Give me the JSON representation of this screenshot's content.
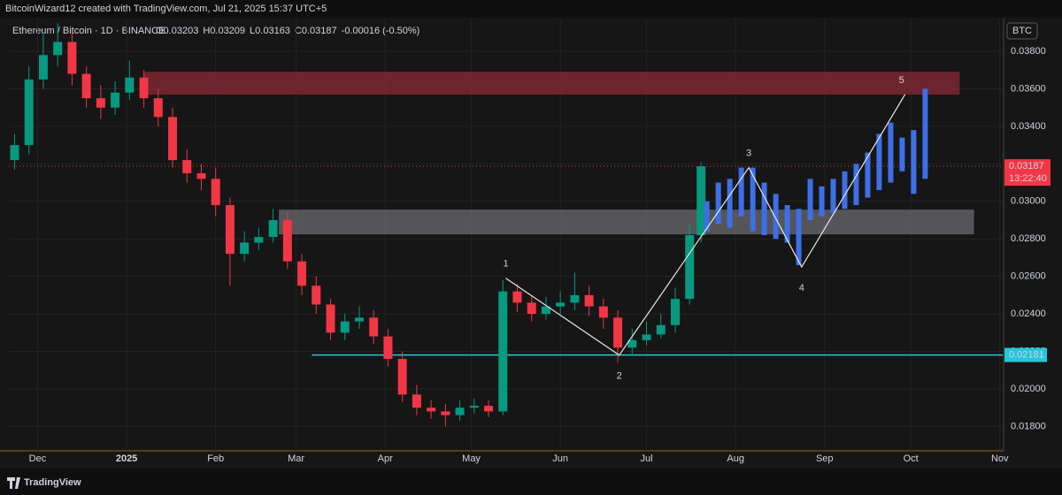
{
  "header": "BitcoinWizard12 created with TradingView.com, Jul 21, 2025 15:37 UTC+5",
  "footer": "TradingView",
  "chart_data": {
    "type": "candlestick",
    "legend_title": "Ethereum / Bitcoin · 1D · BINANCE",
    "ohlc_text": [
      "O0.03203",
      "H0.03209",
      "L0.03163",
      "C0.03187",
      "-0.00016 (-0.50%)"
    ],
    "currency": "BTC",
    "up_color": "#089981",
    "down_color": "#f23645",
    "x": [
      -8,
      -3,
      2,
      7,
      12,
      17,
      22,
      27,
      32,
      37,
      42,
      47,
      52,
      57,
      62,
      67,
      72,
      77,
      82,
      87,
      92,
      97,
      102,
      107,
      112,
      117,
      122,
      127,
      132,
      137,
      142,
      147,
      152,
      157,
      162,
      167,
      172,
      177,
      182,
      187,
      192,
      197,
      202,
      207,
      212,
      217,
      222,
      227,
      231
    ],
    "open": [
      0.0322,
      0.033,
      0.0365,
      0.0378,
      0.0385,
      0.0368,
      0.0355,
      0.035,
      0.0358,
      0.0366,
      0.0355,
      0.0345,
      0.0322,
      0.0315,
      0.0312,
      0.0298,
      0.0272,
      0.0278,
      0.0281,
      0.029,
      0.0268,
      0.0255,
      0.0245,
      0.023,
      0.0236,
      0.0238,
      0.0228,
      0.0216,
      0.0197,
      0.019,
      0.0188,
      0.0186,
      0.019,
      0.0191,
      0.0188,
      0.0252,
      0.0246,
      0.024,
      0.0244,
      0.0246,
      0.025,
      0.0244,
      0.0238,
      0.0222,
      0.0226,
      0.0229,
      0.0234,
      0.0248,
      0.0282
    ],
    "high": [
      0.0336,
      0.0372,
      0.039,
      0.0395,
      0.039,
      0.0372,
      0.0362,
      0.0364,
      0.0375,
      0.037,
      0.036,
      0.035,
      0.0328,
      0.032,
      0.0318,
      0.0302,
      0.0284,
      0.0286,
      0.0296,
      0.0294,
      0.0272,
      0.026,
      0.0248,
      0.024,
      0.0244,
      0.0242,
      0.0232,
      0.022,
      0.0202,
      0.0194,
      0.0192,
      0.0194,
      0.0195,
      0.0194,
      0.0258,
      0.0256,
      0.025,
      0.0249,
      0.0252,
      0.0262,
      0.0255,
      0.0248,
      0.0242,
      0.0232,
      0.0236,
      0.024,
      0.0254,
      0.0288,
      0.03209
    ],
    "low": [
      0.0317,
      0.0325,
      0.036,
      0.0372,
      0.0362,
      0.035,
      0.0344,
      0.0346,
      0.0354,
      0.035,
      0.034,
      0.0318,
      0.031,
      0.0306,
      0.0292,
      0.0255,
      0.0268,
      0.0274,
      0.0278,
      0.0264,
      0.025,
      0.024,
      0.0226,
      0.0226,
      0.0232,
      0.0224,
      0.0212,
      0.0193,
      0.0186,
      0.0184,
      0.018,
      0.0183,
      0.0187,
      0.0185,
      0.0186,
      0.0241,
      0.0236,
      0.0237,
      0.024,
      0.0242,
      0.0239,
      0.0232,
      0.0214,
      0.0218,
      0.0223,
      0.0227,
      0.023,
      0.0245,
      0.0278
    ],
    "close": [
      0.033,
      0.0365,
      0.0378,
      0.0385,
      0.0368,
      0.0355,
      0.035,
      0.0358,
      0.0366,
      0.0355,
      0.0345,
      0.0322,
      0.0315,
      0.0312,
      0.0298,
      0.0272,
      0.0278,
      0.0281,
      0.029,
      0.0268,
      0.0255,
      0.0245,
      0.023,
      0.0236,
      0.0238,
      0.0228,
      0.0216,
      0.0197,
      0.019,
      0.0188,
      0.0186,
      0.019,
      0.0191,
      0.0188,
      0.0252,
      0.0246,
      0.024,
      0.0244,
      0.0246,
      0.025,
      0.0244,
      0.0238,
      0.0222,
      0.0226,
      0.0229,
      0.0234,
      0.0248,
      0.0282,
      0.03187
    ],
    "projection": {
      "color": "#3d6fe6",
      "x": [
        233,
        237,
        241,
        245,
        249,
        253,
        257,
        261,
        265,
        269,
        273,
        277,
        281,
        285,
        289,
        293,
        297,
        301,
        305,
        309
      ],
      "high": [
        0.03,
        0.031,
        0.0312,
        0.0318,
        0.0318,
        0.031,
        0.0304,
        0.0298,
        0.0296,
        0.0312,
        0.0308,
        0.0312,
        0.0316,
        0.032,
        0.0326,
        0.0336,
        0.0342,
        0.0334,
        0.0338,
        0.036
      ],
      "low": [
        0.0284,
        0.0288,
        0.0286,
        0.0292,
        0.0284,
        0.0282,
        0.028,
        0.0278,
        0.0266,
        0.029,
        0.0292,
        0.0294,
        0.0296,
        0.0298,
        0.0302,
        0.0306,
        0.031,
        0.0316,
        0.0304,
        0.0312
      ]
    },
    "zones": [
      {
        "color": "#8a2a36",
        "x": [
          37,
          321
        ],
        "y": [
          0.03569,
          0.03691
        ]
      },
      {
        "color": "#6b6b70",
        "x": [
          84,
          326
        ],
        "y": [
          0.02824,
          0.02956
        ]
      }
    ],
    "waves": {
      "labels": [
        "1",
        "2",
        "3",
        "4",
        "5"
      ],
      "colors": [
        "#f5c542",
        "#f5c542",
        "#f5c542",
        "#f5c542",
        "#f7931a"
      ],
      "x": [
        163,
        202.5,
        247.6,
        266,
        302
      ],
      "y": [
        0.0259,
        0.0218,
        0.0318,
        0.0265,
        0.0357
      ]
    },
    "support": {
      "value": 0.02181,
      "label": "0.02181",
      "x": 95.5,
      "color": "#26c6da"
    },
    "last_price": {
      "value": 0.03187,
      "label": "0.03187",
      "countdown": "13:22:40",
      "color": "#f23645"
    },
    "xlim": [
      -10,
      336
    ],
    "ylim": [
      0.0167,
      0.0397
    ],
    "xticks": [
      {
        "value": 0,
        "label": "Dec"
      },
      {
        "value": 31,
        "label": "2025"
      },
      {
        "value": 62,
        "label": "Feb"
      },
      {
        "value": 90,
        "label": "Mar"
      },
      {
        "value": 121,
        "label": "Apr"
      },
      {
        "value": 151,
        "label": "May"
      },
      {
        "value": 182,
        "label": "Jun"
      },
      {
        "value": 212,
        "label": "Jul"
      },
      {
        "value": 243,
        "label": "Aug"
      },
      {
        "value": 274,
        "label": "Sep"
      },
      {
        "value": 304,
        "label": "Oct"
      },
      {
        "value": 335,
        "label": "Nov"
      }
    ],
    "yticks": [
      {
        "value": 0.018,
        "label": "0.01800"
      },
      {
        "value": 0.02,
        "label": "0.02000"
      },
      {
        "value": 0.022,
        "label": "0.02200"
      },
      {
        "value": 0.024,
        "label": "0.02400"
      },
      {
        "value": 0.026,
        "label": "0.02600"
      },
      {
        "value": 0.028,
        "label": "0.02800"
      },
      {
        "value": 0.03,
        "label": "0.03000"
      },
      {
        "value": 0.032,
        "label": "0.03200"
      },
      {
        "value": 0.034,
        "label": "0.03400"
      },
      {
        "value": 0.036,
        "label": "0.03600"
      },
      {
        "value": 0.038,
        "label": "0.03800"
      }
    ]
  }
}
